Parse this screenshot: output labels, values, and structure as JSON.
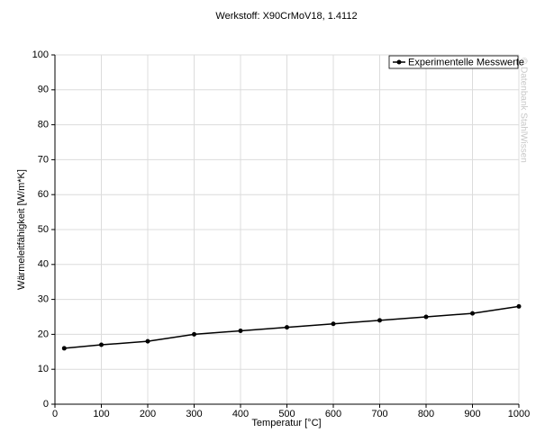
{
  "chart_data": {
    "type": "line",
    "title": "Werkstoff: X90CrMoV18, 1.4112",
    "x_label": "Temperatur [°C]",
    "y_label": "Wärmeleitfähigkeit [W/m*K]",
    "watermark": "© Datenbank StahlWissen",
    "x": [
      20,
      100,
      200,
      300,
      400,
      500,
      600,
      700,
      800,
      900,
      1000
    ],
    "series": [
      {
        "name": "Experimentelle Messwerte",
        "color": "#000000",
        "values": [
          16,
          17,
          18,
          20,
          21,
          22,
          23,
          24,
          25,
          26,
          28
        ]
      }
    ],
    "xlim": [
      0,
      1000
    ],
    "xticks": [
      0,
      100,
      200,
      300,
      400,
      500,
      600,
      700,
      800,
      900,
      1000
    ],
    "ylim": [
      0,
      100
    ],
    "yticks": [
      0,
      10,
      20,
      30,
      40,
      50,
      60,
      70,
      80,
      90,
      100
    ],
    "grid": true,
    "legend_position": "top-right"
  }
}
